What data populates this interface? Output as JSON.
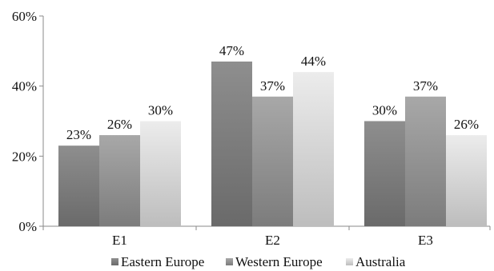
{
  "chart_data": {
    "type": "bar",
    "categories": [
      "E1",
      "E2",
      "E3"
    ],
    "series": [
      {
        "name": "Eastern Europe",
        "values": [
          23,
          47,
          30
        ],
        "labels": [
          "23%",
          "47%",
          "30%"
        ]
      },
      {
        "name": "Western Europe",
        "values": [
          26,
          37,
          37
        ],
        "labels": [
          "26%",
          "37%",
          "37%"
        ]
      },
      {
        "name": "Australia",
        "values": [
          30,
          44,
          26
        ],
        "labels": [
          "30%",
          "44%",
          "26%"
        ]
      }
    ],
    "ylim": [
      0,
      60
    ],
    "yticks": [
      0,
      20,
      40,
      60
    ],
    "ytick_labels": [
      "0%",
      "20%",
      "40%",
      "60%"
    ],
    "legend_position": "bottom",
    "grid": false,
    "colors": {
      "Eastern Europe": [
        "#6a6a6a",
        "#8e8e8e"
      ],
      "Western Europe": [
        "#7c7c7c",
        "#a8a8a8"
      ],
      "Australia": [
        "#bdbdbd",
        "#ececec"
      ]
    }
  }
}
